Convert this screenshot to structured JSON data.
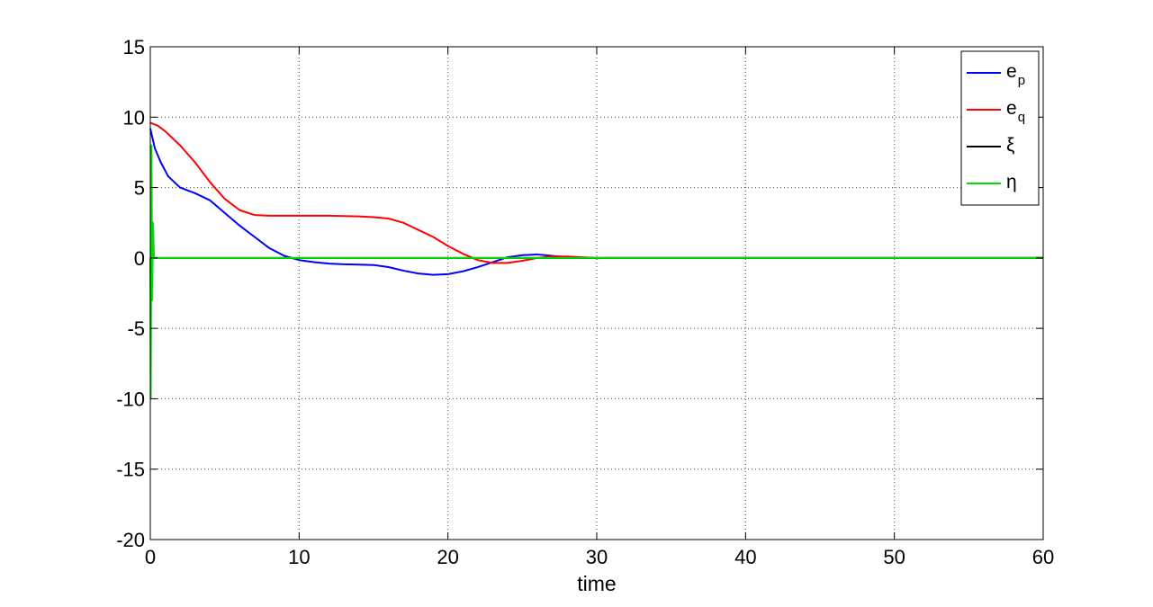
{
  "chart_data": {
    "type": "line",
    "title": "",
    "xlabel": "time",
    "ylabel": "",
    "xlim": [
      0,
      60
    ],
    "ylim": [
      -20,
      15
    ],
    "xticks": [
      0,
      10,
      20,
      30,
      40,
      50,
      60
    ],
    "yticks": [
      15,
      10,
      5,
      0,
      -5,
      -10,
      -15,
      -20
    ],
    "grid": true,
    "legend_position": "top-right",
    "series": [
      {
        "name": "e_p",
        "legend_main": "e",
        "legend_sub": "p",
        "color": "#0000ff",
        "x": [
          0,
          0.3,
          0.7,
          1.2,
          2,
          3,
          4,
          5,
          6,
          7,
          8,
          9,
          10,
          11,
          12,
          13,
          14,
          15,
          16,
          17,
          18,
          19,
          20,
          21,
          22,
          23,
          24,
          25,
          26,
          27,
          28,
          29,
          30,
          31,
          60
        ],
        "y": [
          9.2,
          7.8,
          6.8,
          5.8,
          5.0,
          4.6,
          4.1,
          3.2,
          2.3,
          1.5,
          0.7,
          0.15,
          -0.15,
          -0.3,
          -0.4,
          -0.45,
          -0.47,
          -0.5,
          -0.65,
          -0.9,
          -1.1,
          -1.2,
          -1.15,
          -0.95,
          -0.65,
          -0.3,
          0.05,
          0.2,
          0.25,
          0.15,
          0.05,
          0.0,
          -0.02,
          0.0,
          0.0
        ]
      },
      {
        "name": "e_q",
        "legend_main": "e",
        "legend_sub": "q",
        "color": "#ff0000",
        "x": [
          0,
          0.5,
          1,
          2,
          3,
          4,
          5,
          6,
          7,
          8,
          9,
          10,
          12,
          14,
          15,
          16,
          17,
          18,
          19,
          20,
          21,
          22,
          23,
          24,
          25,
          26,
          27,
          28,
          29,
          30,
          60
        ],
        "y": [
          9.6,
          9.4,
          9.0,
          8.0,
          6.8,
          5.4,
          4.2,
          3.4,
          3.05,
          3.0,
          3.0,
          3.0,
          3.0,
          2.95,
          2.9,
          2.8,
          2.5,
          2.0,
          1.5,
          0.85,
          0.3,
          -0.15,
          -0.35,
          -0.35,
          -0.2,
          0.0,
          0.1,
          0.1,
          0.05,
          0.0,
          0.0
        ]
      },
      {
        "name": "ξ",
        "legend_main": "ξ",
        "legend_sub": "",
        "color": "#000000",
        "x": [
          0,
          0.05,
          0.1,
          0.15,
          60
        ],
        "y": [
          0,
          -0.8,
          0.3,
          0,
          0
        ]
      },
      {
        "name": "η",
        "legend_main": "η",
        "legend_sub": "",
        "color": "#00dd00",
        "x": [
          0,
          0.03,
          0.08,
          0.13,
          0.18,
          0.25,
          60
        ],
        "y": [
          0,
          -10,
          8,
          -3,
          2.5,
          0,
          0
        ]
      }
    ]
  }
}
